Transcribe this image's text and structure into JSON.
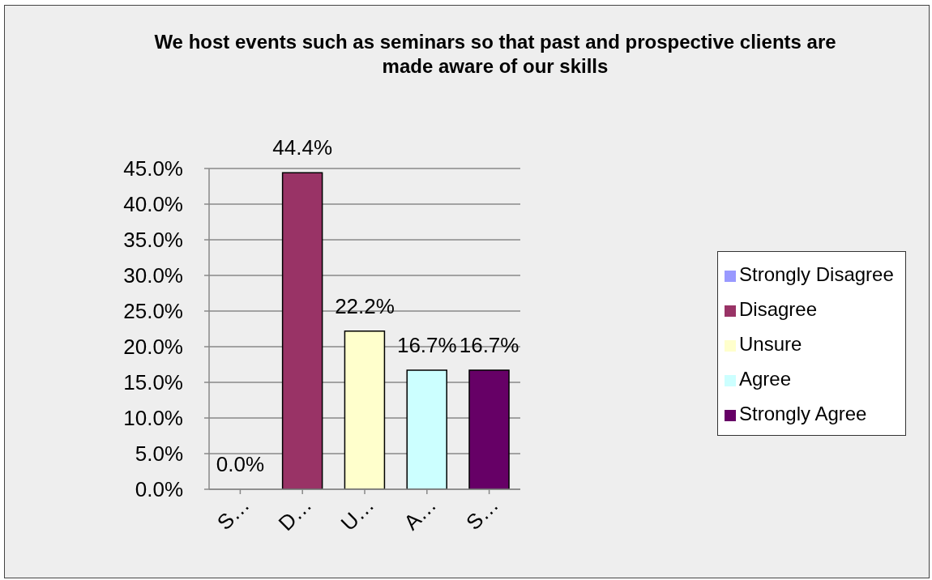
{
  "chart_data": {
    "type": "bar",
    "title": "We host events such as seminars so that past and prospective clients are made aware of our skills",
    "categories": [
      "S…",
      "D…",
      "U…",
      "A…",
      "S…"
    ],
    "stacked": true,
    "series": [
      {
        "name": "Strongly Disagree",
        "color": "#9999ff",
        "values": [
          0,
          null,
          null,
          null,
          null
        ],
        "value_labels": [
          "0.0%",
          null,
          null,
          null,
          null
        ]
      },
      {
        "name": "Disagree",
        "color": "#993366",
        "values": [
          null,
          44.4,
          null,
          null,
          null
        ],
        "value_labels": [
          null,
          "44.4%",
          null,
          null,
          null
        ]
      },
      {
        "name": "Unsure",
        "color": "#ffffcc",
        "values": [
          null,
          null,
          22.2,
          null,
          null
        ],
        "value_labels": [
          null,
          null,
          "22.2%",
          null,
          null
        ]
      },
      {
        "name": "Agree",
        "color": "#ccffff",
        "values": [
          null,
          null,
          null,
          16.7,
          null
        ],
        "value_labels": [
          null,
          null,
          null,
          "16.7%",
          null
        ]
      },
      {
        "name": "Strongly Agree",
        "color": "#660066",
        "values": [
          null,
          null,
          null,
          null,
          16.7
        ],
        "value_labels": [
          null,
          null,
          null,
          null,
          "16.7%"
        ]
      }
    ],
    "ylim": [
      0,
      45
    ],
    "yticks": [
      {
        "value": 0,
        "label": "0.0%"
      },
      {
        "value": 5,
        "label": "5.0%"
      },
      {
        "value": 10,
        "label": "10.0%"
      },
      {
        "value": 15,
        "label": "15.0%"
      },
      {
        "value": 20,
        "label": "20.0%"
      },
      {
        "value": 25,
        "label": "25.0%"
      },
      {
        "value": 30,
        "label": "30.0%"
      },
      {
        "value": 35,
        "label": "35.0%"
      },
      {
        "value": 40,
        "label": "40.0%"
      },
      {
        "value": 45,
        "label": "45.0%"
      }
    ],
    "grid": "y",
    "legend": "right"
  }
}
